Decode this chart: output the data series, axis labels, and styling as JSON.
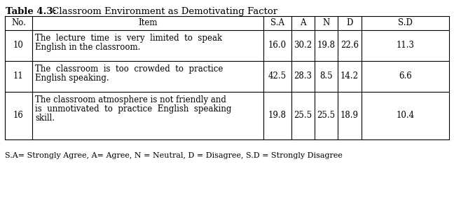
{
  "title_bold": "Table 4.3:",
  "title_regular": " Classroom Environment as Demotivating Factor",
  "headers": [
    "No.",
    "Item",
    "S.A",
    "A",
    "N",
    "D",
    "S.D"
  ],
  "rows": [
    {
      "no": "10",
      "item_lines": [
        "The  lecture  time  is  very  limited  to  speak",
        "English in the classroom."
      ],
      "values": [
        "16.0",
        "30.2",
        "19.8",
        "22.6",
        "11.3"
      ]
    },
    {
      "no": "11",
      "item_lines": [
        "The  classroom  is  too  crowded  to  practice",
        "English speaking."
      ],
      "values": [
        "42.5",
        "28.3",
        "8.5",
        "14.2",
        "6.6"
      ]
    },
    {
      "no": "16",
      "item_lines": [
        "The classroom atmosphere is not friendly and",
        "is  unmotivated  to  practice  English  speaking",
        "skill."
      ],
      "values": [
        "19.8",
        "25.5",
        "25.5",
        "18.9",
        "10.4"
      ]
    }
  ],
  "footnote": "S.A= Strongly Agree, A= Agree, N = Neutral, D = Disagree, S.D = Strongly Disagree",
  "bg_color": "#ffffff",
  "text_color": "#000000"
}
